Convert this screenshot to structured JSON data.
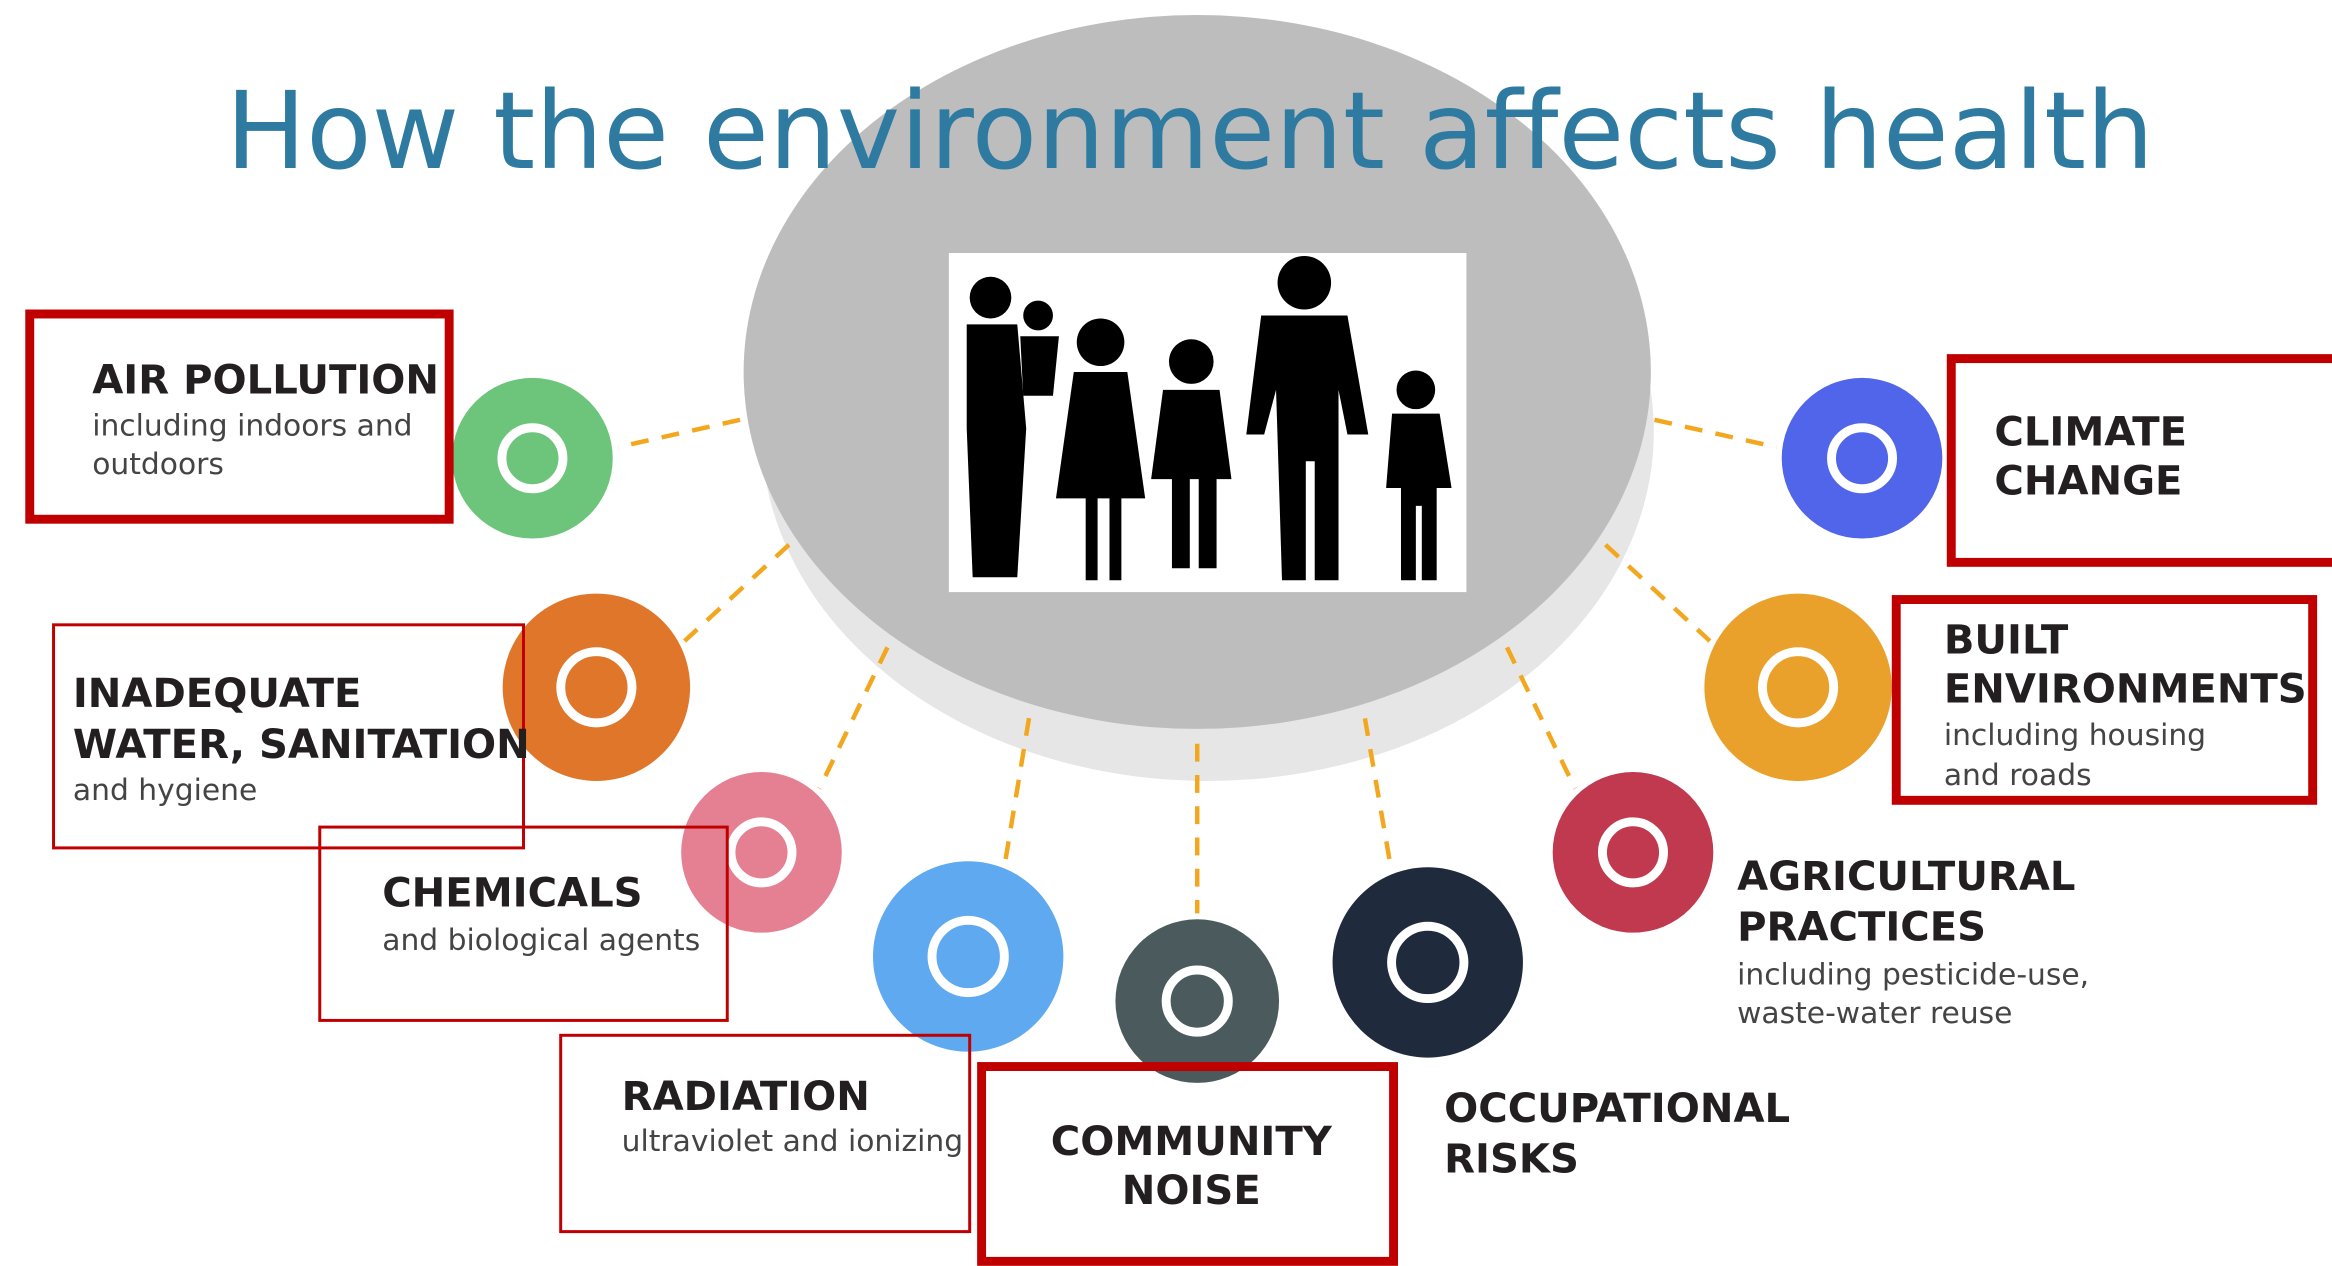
{
  "title": "How the environment affects health",
  "items": [
    {
      "heading": [
        "AIR POLLUTION"
      ],
      "details": [
        "including indoors and",
        "outdoors"
      ]
    },
    {
      "heading": [
        "INADEQUATE",
        "WATER, SANITATION"
      ],
      "details": [
        "and hygiene"
      ]
    },
    {
      "heading": [
        "CHEMICALS"
      ],
      "details": [
        "and biological agents"
      ]
    },
    {
      "heading": [
        "RADIATION"
      ],
      "details": [
        "ultraviolet and ionizing"
      ]
    },
    {
      "heading": [
        "COMMUNITY",
        "NOISE"
      ],
      "details": []
    },
    {
      "heading": [
        "OCCUPATIONAL",
        "RISKS"
      ],
      "details": []
    },
    {
      "heading": [
        "AGRICULTURAL",
        "PRACTICES"
      ],
      "details": [
        "including pesticide-use,",
        "waste-water reuse"
      ]
    },
    {
      "heading": [
        "BUILT",
        "ENVIRONMENTS"
      ],
      "details": [
        "including housing",
        "and roads"
      ]
    },
    {
      "heading": [
        "CLIMATE",
        "CHANGE"
      ],
      "details": []
    }
  ]
}
